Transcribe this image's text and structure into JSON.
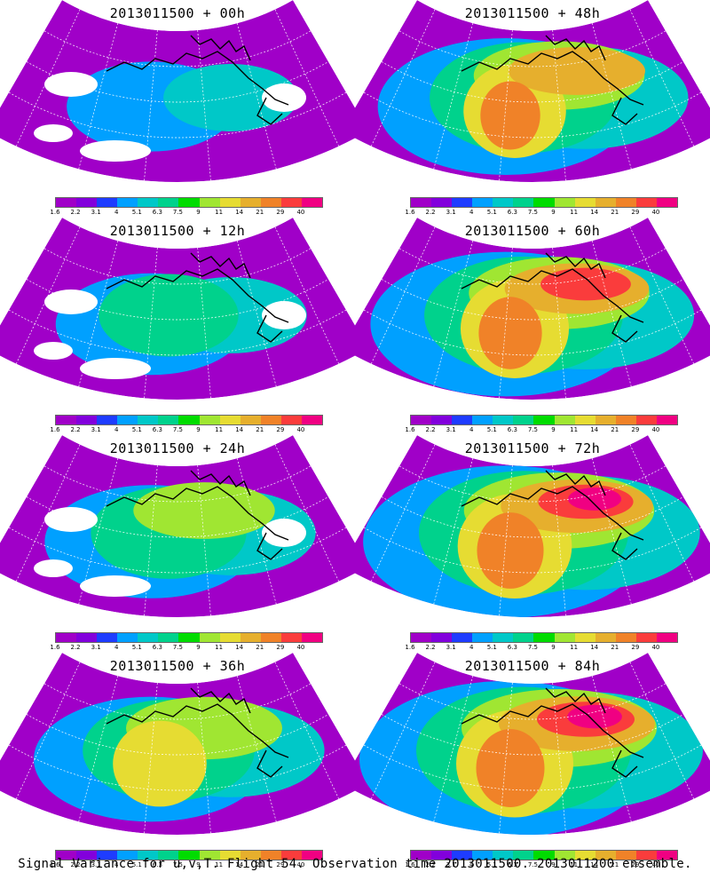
{
  "panels": [
    {
      "title": "2013011500 + 00h",
      "intensity": 0.15
    },
    {
      "title": "2013011500 + 48h",
      "intensity": 0.75
    },
    {
      "title": "2013011500 + 12h",
      "intensity": 0.3
    },
    {
      "title": "2013011500 + 60h",
      "intensity": 0.85
    },
    {
      "title": "2013011500 + 24h",
      "intensity": 0.45
    },
    {
      "title": "2013011500 + 72h",
      "intensity": 0.95
    },
    {
      "title": "2013011500 + 36h",
      "intensity": 0.6
    },
    {
      "title": "2013011500 + 84h",
      "intensity": 1.0
    }
  ],
  "colorbar": {
    "labels": [
      "1.6",
      "2.2",
      "3.1",
      "4",
      "5.1",
      "6.3",
      "7.5",
      "9",
      "11",
      "14",
      "21",
      "29",
      "40"
    ],
    "colors": [
      "#a000c8",
      "#8200dc",
      "#1e3cff",
      "#00a0ff",
      "#00c8c8",
      "#00d28c",
      "#00dc00",
      "#a0e632",
      "#e6dc32",
      "#e6af2d",
      "#f08228",
      "#fa3c3c",
      "#f00082"
    ]
  },
  "caption": "Signal Variance for u,v,T. Flight 54. Observation time 2013011500. 2013011200 ensemble."
}
